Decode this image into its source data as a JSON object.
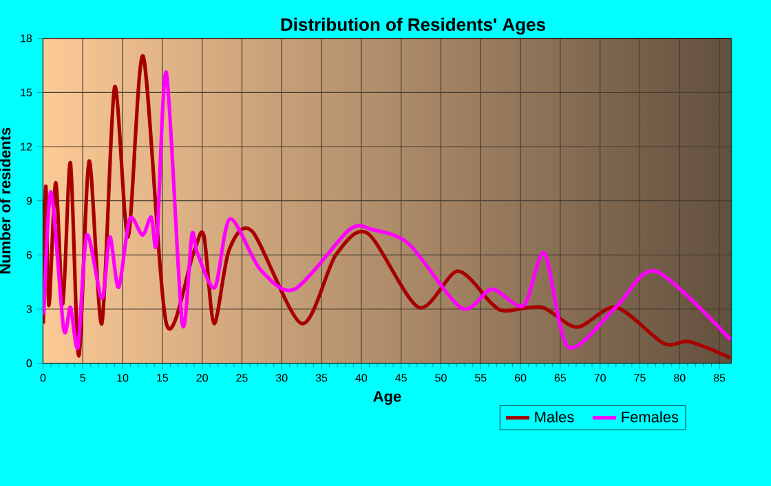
{
  "chart_data": {
    "type": "line",
    "title": "Distribution of Residents' Ages",
    "xlabel": "Age",
    "ylabel": "Number of residents",
    "xlim": [
      0,
      86.5
    ],
    "ylim": [
      0,
      18
    ],
    "xticks": [
      0,
      5,
      10,
      15,
      20,
      25,
      30,
      35,
      40,
      45,
      50,
      55,
      60,
      65,
      70,
      75,
      80,
      85
    ],
    "yticks": [
      0,
      3,
      6,
      9,
      12,
      15,
      18
    ],
    "grid": true,
    "legend": "bottom right",
    "marker": "none",
    "line_style": "solid",
    "series": [
      {
        "name": "Males",
        "color": "#a80000",
        "x": [
          0.05,
          0.35,
          0.75,
          1.6,
          2.5,
          3.45,
          4.5,
          5.8,
          7.4,
          9.0,
          10.7,
          12.6,
          15.5,
          18.9,
          20.2,
          21.5,
          23.4,
          26.3,
          32.5,
          36.8,
          40.8,
          47.2,
          52.1,
          56.4,
          58.1,
          62.7,
          67.1,
          72,
          78,
          81.2,
          86.4
        ],
        "values": [
          2.2,
          9.8,
          3.2,
          10,
          3.3,
          11.1,
          0.4,
          11.2,
          2.2,
          15.3,
          7,
          17,
          2.2,
          6.1,
          7.1,
          2.2,
          6.3,
          7.3,
          2.2,
          6,
          7.2,
          3.1,
          5.1,
          3.3,
          2.9,
          3.1,
          2,
          3.1,
          1.1,
          1.2,
          0.3
        ]
      },
      {
        "name": "Females",
        "color": "#ff00ff",
        "x": [
          0.1,
          1.0,
          2.6,
          3.45,
          4.4,
          5.5,
          7.4,
          8.4,
          9.5,
          10.9,
          12.5,
          13.6,
          14.3,
          15.5,
          17.5,
          18.7,
          19.4,
          21.6,
          23.5,
          27.3,
          31.6,
          38.5,
          41.4,
          46,
          52.6,
          56.4,
          60.4,
          63,
          66,
          72,
          77,
          86.4
        ],
        "values": [
          2.7,
          9.5,
          1.9,
          3.1,
          0.9,
          7.1,
          3.6,
          7,
          4.2,
          8,
          7.1,
          8.1,
          6.7,
          16.1,
          2.2,
          7.1,
          6.1,
          4.2,
          8,
          5.2,
          4.1,
          7.4,
          7.4,
          6.6,
          3.05,
          4.1,
          3.2,
          6.1,
          0.9,
          3.1,
          5.1,
          1.3
        ]
      }
    ]
  }
}
